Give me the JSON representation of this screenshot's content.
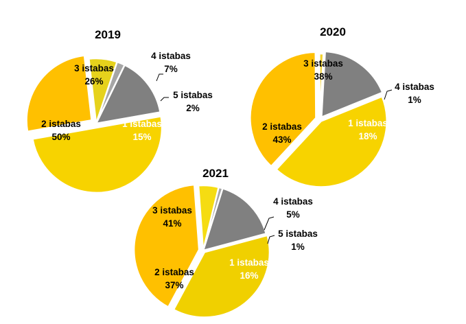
{
  "chart_data": [
    {
      "type": "pie",
      "title": "2019",
      "slices": [
        {
          "label": "1 istabas",
          "value": 15,
          "value_label": "15%",
          "color": "#808080"
        },
        {
          "label": "5 istabas",
          "value": 2,
          "value_label": "2%",
          "color": "#a6a6a6"
        },
        {
          "label": "4 istabas",
          "value": 7,
          "value_label": "7%",
          "color": "#e6d21c"
        },
        {
          "label": "3 istabas",
          "value": 26,
          "value_label": "26%",
          "color": "#ffc000"
        },
        {
          "label": "2 istabas",
          "value": 50,
          "value_label": "50%",
          "color": "#f7d300"
        }
      ]
    },
    {
      "type": "pie",
      "title": "2020",
      "slices": [
        {
          "label": "1 istabas",
          "value": 18,
          "value_label": "18%",
          "color": "#808080"
        },
        {
          "label": "4 istabas",
          "value": 1,
          "value_label": "1%",
          "color": "#f2d12b"
        },
        {
          "label": "3 istabas",
          "value": 38,
          "value_label": "38%",
          "color": "#ffc000"
        },
        {
          "label": "2 istabas",
          "value": 43,
          "value_label": "43%",
          "color": "#f7d300"
        }
      ]
    },
    {
      "type": "pie",
      "title": "2021",
      "slices": [
        {
          "label": "1 istabas",
          "value": 16,
          "value_label": "16%",
          "color": "#808080"
        },
        {
          "label": "5 istabas",
          "value": 1,
          "value_label": "1%",
          "color": "#a6a6a6"
        },
        {
          "label": "4 istabas",
          "value": 5,
          "value_label": "5%",
          "color": "#f5dc12"
        },
        {
          "label": "3 istabas",
          "value": 41,
          "value_label": "41%",
          "color": "#ffc000"
        },
        {
          "label": "2 istabas",
          "value": 37,
          "value_label": "37%",
          "color": "#f0d000"
        }
      ]
    }
  ]
}
